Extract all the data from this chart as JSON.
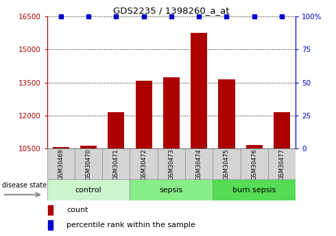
{
  "title": "GDS2235 / 1398260_a_at",
  "samples": [
    "GSM30469",
    "GSM30470",
    "GSM30471",
    "GSM30472",
    "GSM30473",
    "GSM30474",
    "GSM30475",
    "GSM30476",
    "GSM30477"
  ],
  "counts": [
    10570,
    10650,
    12150,
    13580,
    13750,
    15750,
    13650,
    10680,
    12150
  ],
  "percentiles": [
    100,
    100,
    100,
    100,
    100,
    100,
    100,
    100,
    100
  ],
  "groups": [
    {
      "label": "control",
      "indices": [
        0,
        1,
        2
      ],
      "color": "#ccf5cc"
    },
    {
      "label": "sepsis",
      "indices": [
        3,
        4,
        5
      ],
      "color": "#88ee88"
    },
    {
      "label": "burn sepsis",
      "indices": [
        6,
        7,
        8
      ],
      "color": "#55dd55"
    }
  ],
  "ylim_left": [
    10500,
    16500
  ],
  "ylim_right": [
    0,
    100
  ],
  "yticks_left": [
    10500,
    12000,
    13500,
    15000,
    16500
  ],
  "yticks_right": [
    0,
    25,
    50,
    75,
    100
  ],
  "bar_color": "#aa0000",
  "percentile_color": "#0000cc",
  "bar_bottom": 10500,
  "right_axis_labels": [
    "0",
    "25",
    "50",
    "75",
    "100%"
  ],
  "disease_state_label": "disease state",
  "legend_count_label": "count",
  "legend_percentile_label": "percentile rank within the sample",
  "sample_box_color": "#d4d4d4",
  "fig_width": 4.9,
  "fig_height": 3.45,
  "dpi": 100
}
